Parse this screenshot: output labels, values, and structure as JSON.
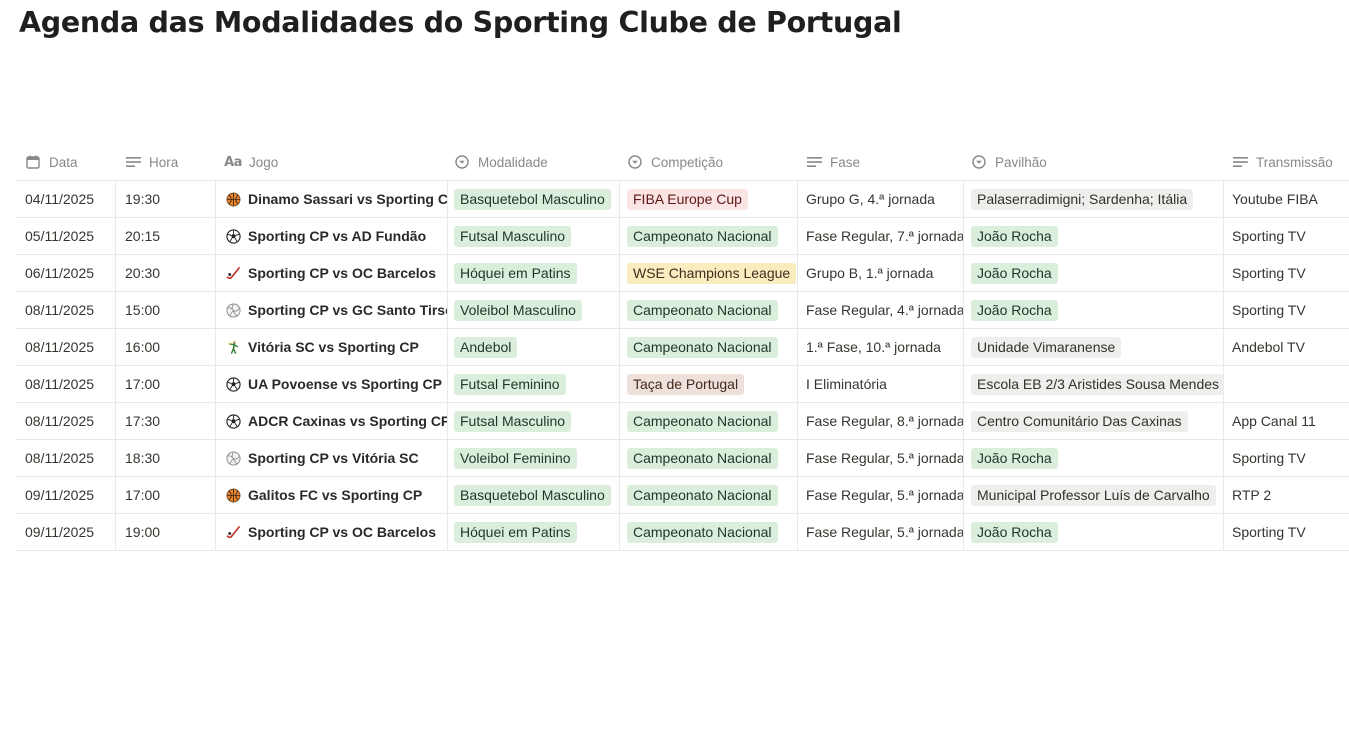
{
  "page": {
    "title": "Agenda das Modalidades do Sporting Clube de Portugal"
  },
  "columns": [
    {
      "label": "Data",
      "icon": "calendar-icon"
    },
    {
      "label": "Hora",
      "icon": "text-lines-icon"
    },
    {
      "label": "Jogo",
      "icon": "title-aa-icon"
    },
    {
      "label": "Modalidade",
      "icon": "select-icon"
    },
    {
      "label": "Competição",
      "icon": "select-icon"
    },
    {
      "label": "Fase",
      "icon": "text-lines-icon"
    },
    {
      "label": "Pavilhão",
      "icon": "select-icon"
    },
    {
      "label": "Transmissão",
      "icon": "text-lines-icon"
    }
  ],
  "colors": {
    "green": "#dbeddb",
    "red": "#fbe4e4",
    "yellow": "#fbecc0",
    "gray": "#eeeeec",
    "brown": "#eee0da"
  },
  "rows": [
    {
      "data": "04/11/2025",
      "hora": "19:30",
      "jogo": "Dinamo Sassari vs Sporting CP",
      "icon": "basketball-icon",
      "modalidade": "Basquetebol Masculino",
      "competicao": "FIBA Europe Cup",
      "competicao_color": "red",
      "fase": "Grupo G, 4.ª jornada",
      "pavilhao": "Palaserradimigni; Sardenha; Itália",
      "pavilhao_color": "gray",
      "transmissao": "Youtube FIBA"
    },
    {
      "data": "05/11/2025",
      "hora": "20:15",
      "jogo": "Sporting CP vs AD Fundão",
      "icon": "soccer-ball-icon",
      "modalidade": "Futsal Masculino",
      "competicao": "Campeonato Nacional",
      "competicao_color": "green",
      "fase": "Fase Regular, 7.ª jornada",
      "pavilhao": "João Rocha",
      "pavilhao_color": "green",
      "transmissao": "Sporting TV"
    },
    {
      "data": "06/11/2025",
      "hora": "20:30",
      "jogo": "Sporting CP vs OC Barcelos",
      "icon": "hockey-stick-icon",
      "modalidade": "Hóquei em Patins",
      "competicao": "WSE Champions League",
      "competicao_color": "yellow",
      "fase": "Grupo B, 1.ª jornada",
      "pavilhao": "João Rocha",
      "pavilhao_color": "green",
      "transmissao": "Sporting TV"
    },
    {
      "data": "08/11/2025",
      "hora": "15:00",
      "jogo": "Sporting CP vs GC Santo Tirso",
      "icon": "volleyball-icon",
      "modalidade": "Voleibol Masculino",
      "competicao": "Campeonato Nacional",
      "competicao_color": "green",
      "fase": "Fase Regular, 4.ª jornada",
      "pavilhao": "João Rocha",
      "pavilhao_color": "green",
      "transmissao": "Sporting TV"
    },
    {
      "data": "08/11/2025",
      "hora": "16:00",
      "jogo": "Vitória SC vs Sporting CP",
      "icon": "handball-player-icon",
      "modalidade": "Andebol",
      "competicao": "Campeonato Nacional",
      "competicao_color": "green",
      "fase": "1.ª Fase, 10.ª jornada",
      "pavilhao": "Unidade Vimaranense",
      "pavilhao_color": "gray",
      "transmissao": "Andebol TV"
    },
    {
      "data": "08/11/2025",
      "hora": "17:00",
      "jogo": "UA Povoense vs Sporting CP",
      "icon": "soccer-ball-icon",
      "modalidade": "Futsal Feminino",
      "competicao": "Taça de Portugal",
      "competicao_color": "brown",
      "fase": "I Eliminatória",
      "pavilhao": "Escola EB 2/3 Aristides Sousa Mendes",
      "pavilhao_color": "gray",
      "transmissao": ""
    },
    {
      "data": "08/11/2025",
      "hora": "17:30",
      "jogo": "ADCR Caxinas vs Sporting CP",
      "icon": "soccer-ball-icon",
      "modalidade": "Futsal Masculino",
      "competicao": "Campeonato Nacional",
      "competicao_color": "green",
      "fase": "Fase Regular, 8.ª jornada",
      "pavilhao": "Centro Comunitário Das Caxinas",
      "pavilhao_color": "gray",
      "transmissao": "App Canal 11"
    },
    {
      "data": "08/11/2025",
      "hora": "18:30",
      "jogo": "Sporting CP vs Vitória SC",
      "icon": "volleyball-icon",
      "modalidade": "Voleibol Feminino",
      "competicao": "Campeonato Nacional",
      "competicao_color": "green",
      "fase": "Fase Regular, 5.ª jornada",
      "pavilhao": "João Rocha",
      "pavilhao_color": "green",
      "transmissao": "Sporting TV"
    },
    {
      "data": "09/11/2025",
      "hora": "17:00",
      "jogo": "Galitos FC vs Sporting CP",
      "icon": "basketball-icon",
      "modalidade": "Basquetebol Masculino",
      "competicao": "Campeonato Nacional",
      "competicao_color": "green",
      "fase": "Fase Regular, 5.ª jornada",
      "pavilhao": "Municipal Professor Luís de Carvalho",
      "pavilhao_color": "gray",
      "transmissao": "RTP 2"
    },
    {
      "data": "09/11/2025",
      "hora": "19:00",
      "jogo": "Sporting CP vs OC Barcelos",
      "icon": "hockey-stick-icon",
      "modalidade": "Hóquei em Patins",
      "competicao": "Campeonato Nacional",
      "competicao_color": "green",
      "fase": "Fase Regular, 5.ª jornada",
      "pavilhao": "João Rocha",
      "pavilhao_color": "green",
      "transmissao": "Sporting TV"
    }
  ]
}
